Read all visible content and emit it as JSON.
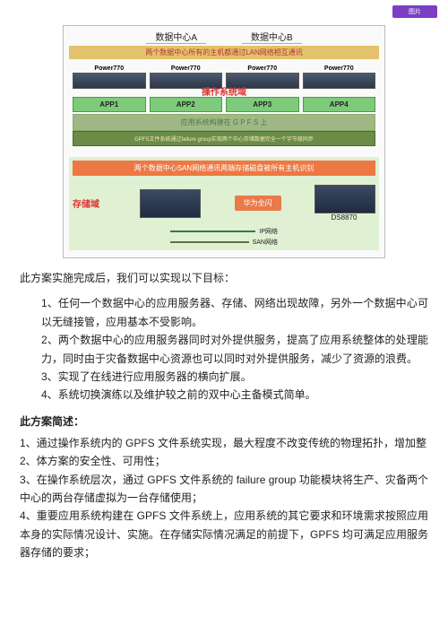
{
  "stamp": "图片",
  "diagram": {
    "dcA": "数据中心A",
    "dcB": "数据中心B",
    "lan": "两个数据中心所有的主机都通过LAN网络相互通讯",
    "servers": [
      "Power770",
      "Power770",
      "Power770",
      "Power770"
    ],
    "os_title": "操作系统域",
    "apps": [
      "APP1",
      "APP2",
      "APP3",
      "APP4"
    ],
    "gpfs_bar": "应用系统构建在 G P F S 上",
    "fg_bar": "GPFS文件系统通过failure group实现两个中心存储数据完全一个字节级同步",
    "san_bar": "两个数据中心SAN网络通讯两端存储磁盘被所有主机识别",
    "sto_label": "存储域",
    "hw_label": "华为全闪",
    "ds_label": "DS8870",
    "line1": "IP网络",
    "line2": "SAN网络"
  },
  "intro": "此方案实施完成后，我们可以实现以下目标：",
  "goals": [
    "1、任何一个数据中心的应用服务器、存储、网络出现故障，另外一个数据中心可以无缝接管，应用基本不受影响。",
    "2、两个数据中心的应用服务器同时对外提供服务，提高了应用系统整体的处理能力，同时由于灾备数据中心资源也可以同时对外提供服务，减少了资源的浪费。",
    "3、实现了在线进行应用服务器的横向扩展。",
    "4、系统切换演练以及维护较之前的双中心主备模式简单。"
  ],
  "sec_title": "此方案简述：",
  "desc": [
    "1、通过操作系统内的 GPFS 文件系统实现，最大程度不改变传统的物理拓扑，增加整",
    "2、体方案的安全性、可用性；",
    "3、在操作系统层次，通过 GPFS 文件系统的 failure group 功能模块将生产、灾备两个中心的两台存储虚拟为一台存储使用；",
    "4、重要应用系统构建在 GPFS 文件系统上，应用系统的其它要求和环境需求按照应用本身的实际情况设计、实施。在存储实际情况满足的前提下，GPFS 均可满足应用服务器存储的要求；"
  ]
}
